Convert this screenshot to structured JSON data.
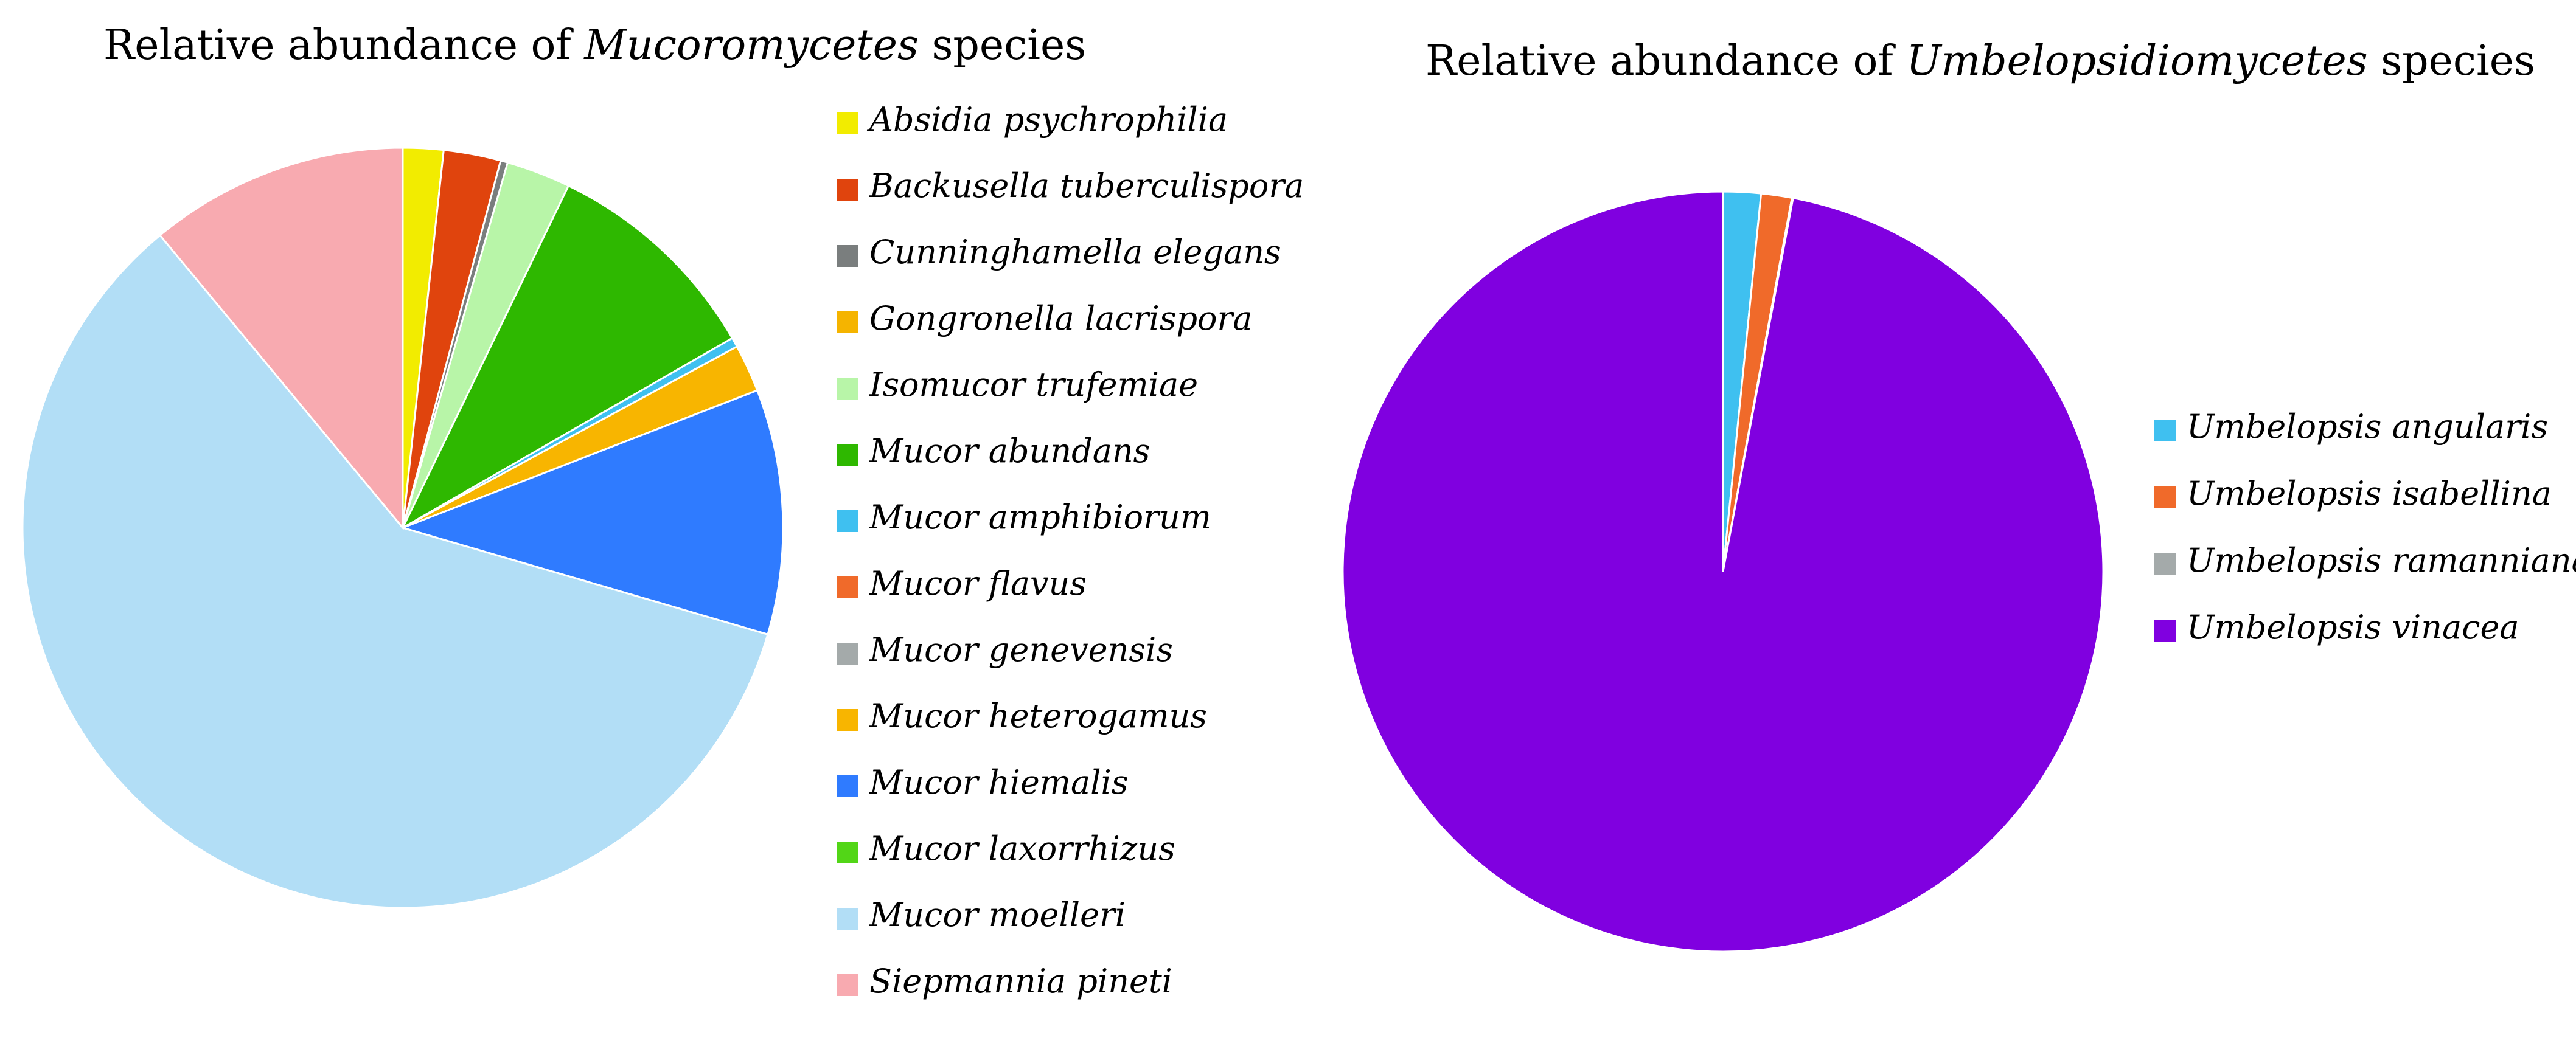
{
  "chart_data": [
    {
      "type": "pie",
      "title_parts": [
        "Relative abundance of ",
        "Mucoromycetes",
        " species"
      ],
      "unit": "percent",
      "legend_position": "right",
      "slices": [
        {
          "label": "Absidia psychrophilia",
          "value": 1.7,
          "color": "#f2ec00"
        },
        {
          "label": "Backusella tuberculispora",
          "value": 2.4,
          "color": "#e0440d"
        },
        {
          "label": "Cunninghamella elegans",
          "value": 0.3,
          "color": "#7a7e7e"
        },
        {
          "label": "Gongronella lacrispora",
          "value": 0.0,
          "color": "#f5b400"
        },
        {
          "label": "Isomucor trufemiae",
          "value": 2.7,
          "color": "#b8f5a8"
        },
        {
          "label": "Mucor abundans",
          "value": 9.4,
          "color": "#2eb800"
        },
        {
          "label": "Mucor amphibiorum",
          "value": 0.4,
          "color": "#3fc0f0"
        },
        {
          "label": "Mucor flavus",
          "value": 0.0,
          "color": "#f06a2a"
        },
        {
          "label": "Mucor genevensis",
          "value": 0.0,
          "color": "#a4aaaa"
        },
        {
          "label": "Mucor heterogamus",
          "value": 2.0,
          "color": "#f8b500"
        },
        {
          "label": "Mucor hiemalis",
          "value": 10.3,
          "color": "#2f7bff"
        },
        {
          "label": "Mucor laxorrhizus",
          "value": 0.0,
          "color": "#52d617"
        },
        {
          "label": "Mucor moelleri",
          "value": 58.8,
          "color": "#b2def6"
        },
        {
          "label": "Siepmannia pineti",
          "value": 10.9,
          "color": "#f8aab0"
        }
      ]
    },
    {
      "type": "pie",
      "title_parts": [
        "Relative abundance of ",
        "Umbelopsidiomycetes",
        " species"
      ],
      "unit": "percent",
      "legend_position": "right",
      "slices": [
        {
          "label": "Umbelopsis angularis",
          "value": 1.6,
          "color": "#3fc0f0"
        },
        {
          "label": "Umbelopsis isabellina",
          "value": 1.3,
          "color": "#f06a2a"
        },
        {
          "label": "Umbelopsis ramanniana",
          "value": 0.05,
          "color": "#a4aaaa"
        },
        {
          "label": "Umbelopsis vinacea",
          "value": 97.05,
          "color": "#8000e0"
        }
      ]
    }
  ]
}
